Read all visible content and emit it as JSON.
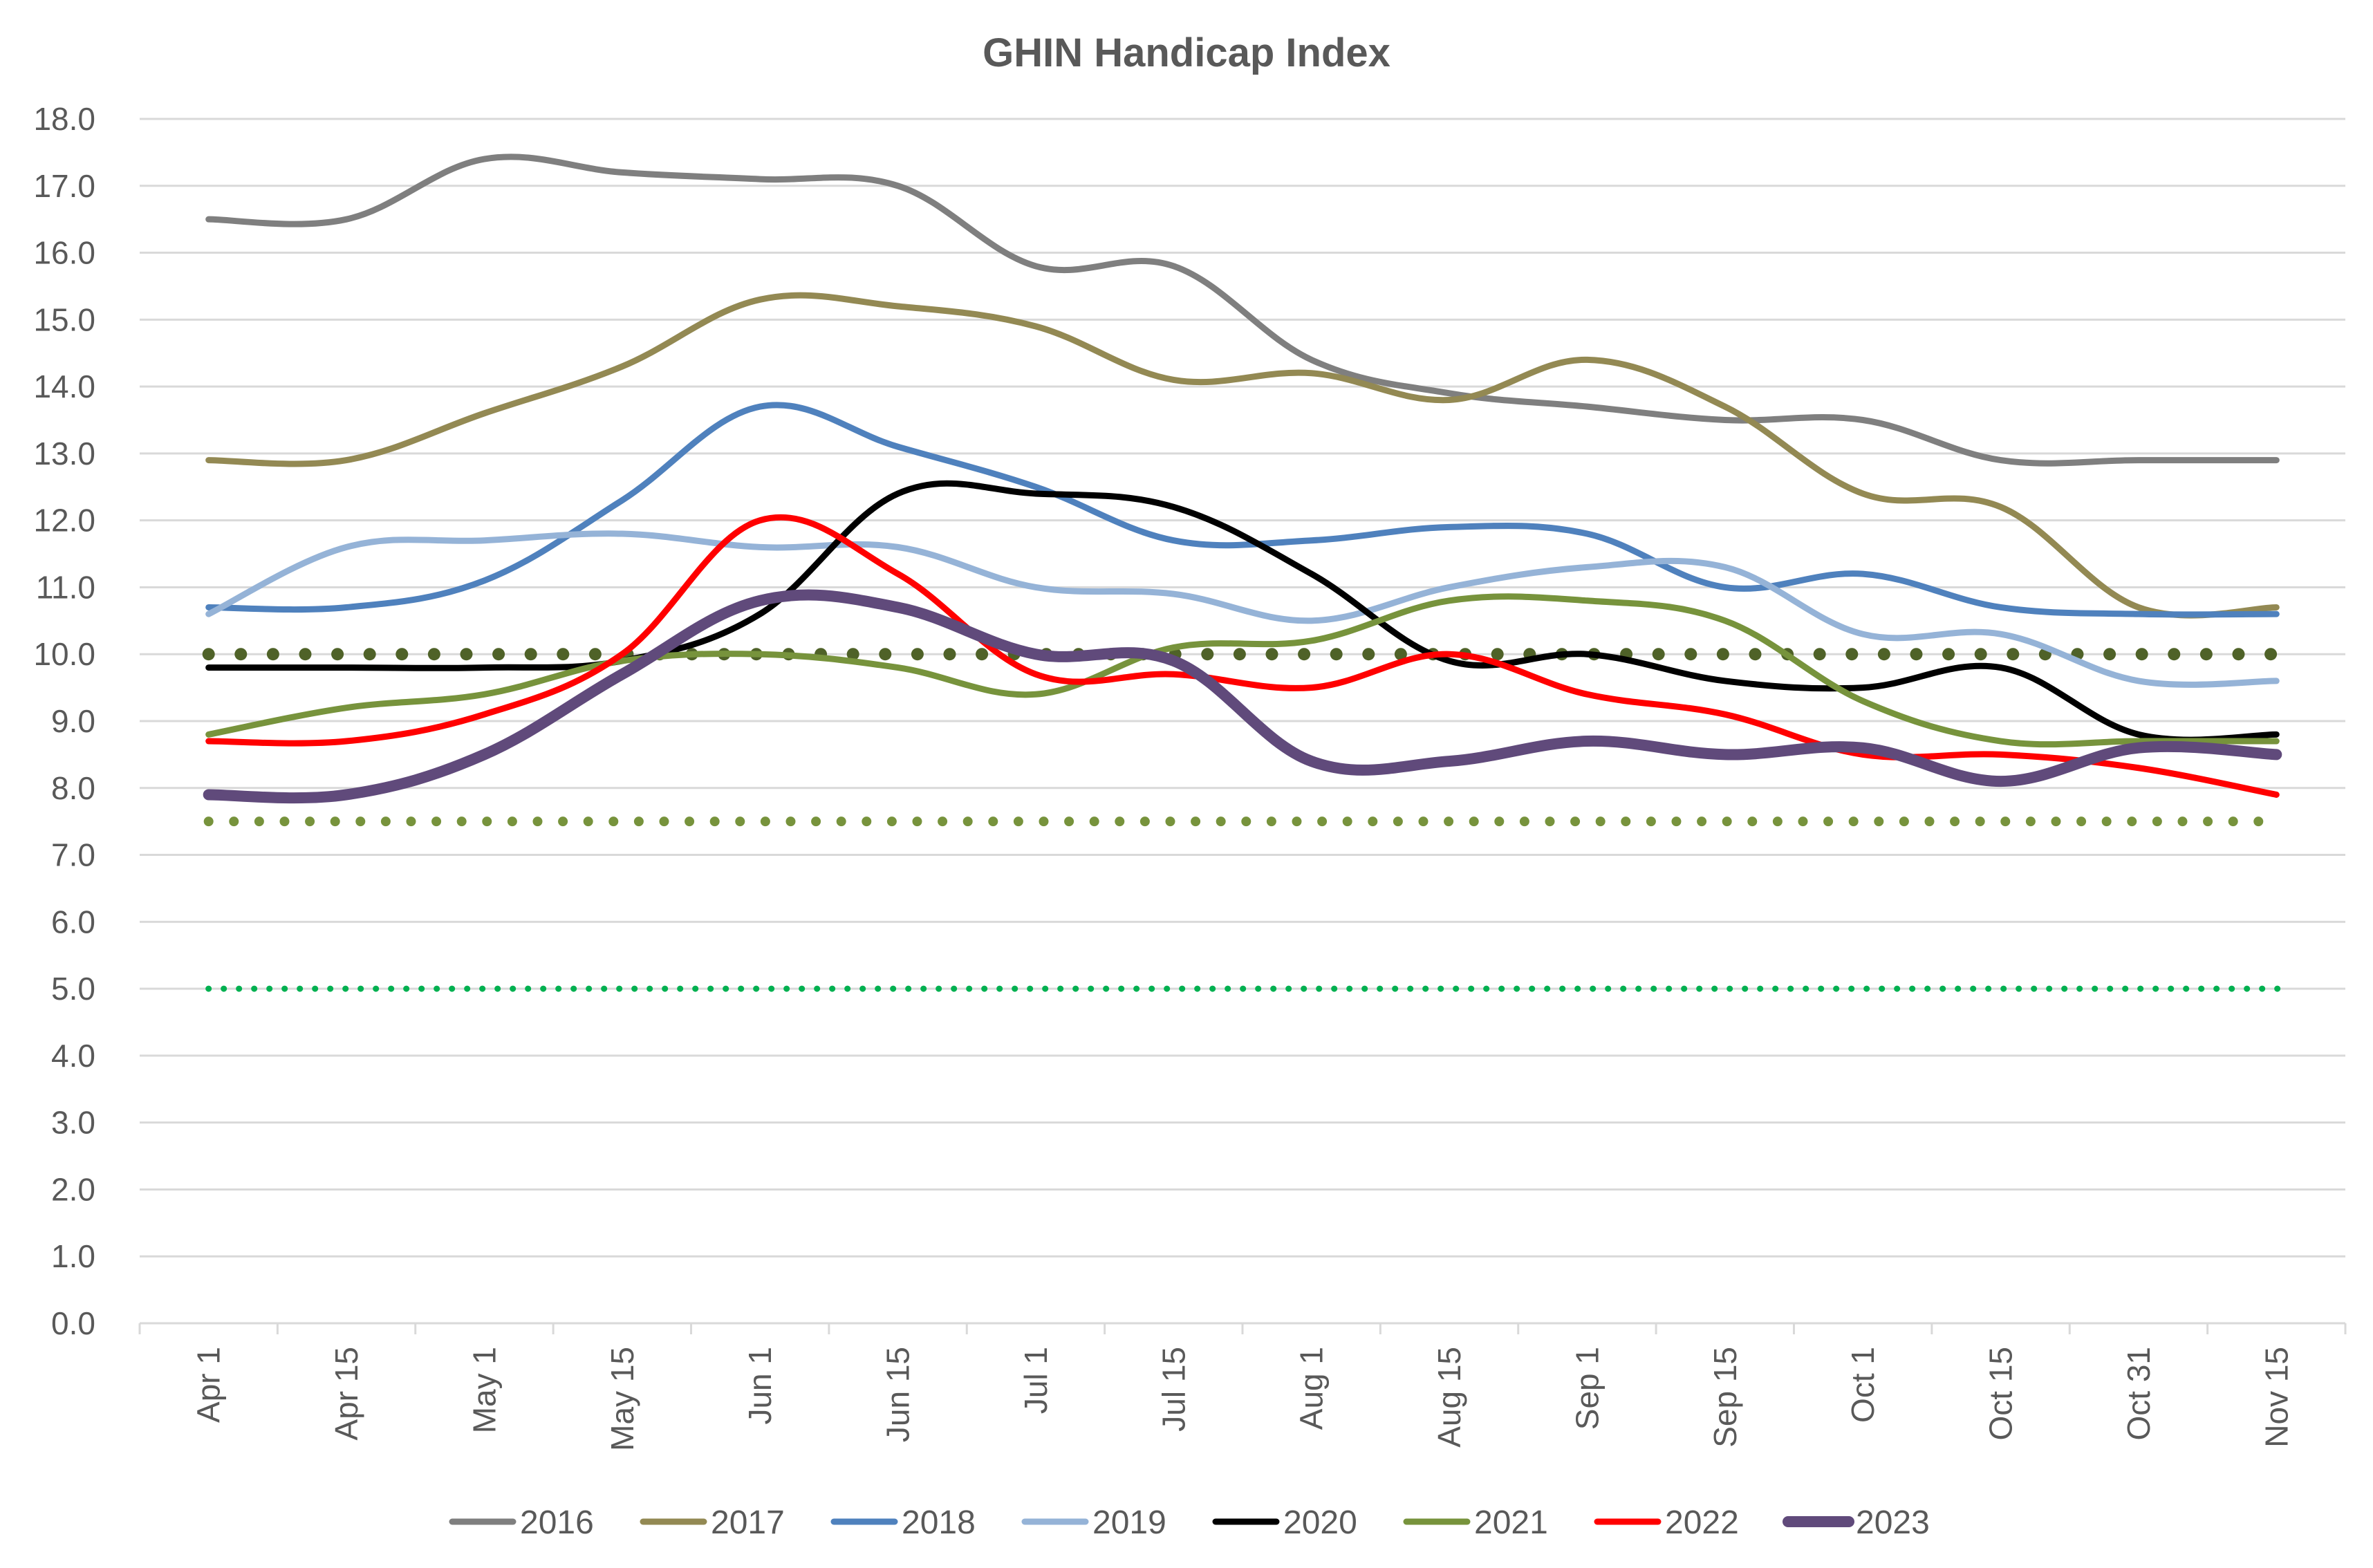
{
  "chart_data": {
    "type": "line",
    "title": "GHIN Handicap Index",
    "xlabel": "",
    "ylabel": "",
    "categories": [
      "Apr 1",
      "Apr 15",
      "May 1",
      "May 15",
      "Jun 1",
      "Jun 15",
      "Jul 1",
      "Jul 15",
      "Aug 1",
      "Aug 15",
      "Sep 1",
      "Sep 15",
      "Oct 1",
      "Oct 15",
      "Oct 31",
      "Nov 15"
    ],
    "ylim": [
      0,
      18
    ],
    "yticks": [
      "0.0",
      "1.0",
      "2.0",
      "3.0",
      "4.0",
      "5.0",
      "6.0",
      "7.0",
      "8.0",
      "9.0",
      "10.0",
      "11.0",
      "12.0",
      "13.0",
      "14.0",
      "15.0",
      "16.0",
      "17.0",
      "18.0"
    ],
    "grid": true,
    "legend_position": "bottom",
    "series": [
      {
        "name": "2016",
        "color": "#7f7f7f",
        "width": 9,
        "values": [
          16.5,
          16.5,
          17.4,
          17.2,
          17.1,
          17.0,
          15.8,
          15.8,
          14.4,
          13.9,
          13.7,
          13.5,
          13.5,
          12.9,
          12.9,
          12.9
        ]
      },
      {
        "name": "2017",
        "color": "#938953",
        "width": 9,
        "values": [
          12.9,
          12.9,
          13.6,
          14.3,
          15.3,
          15.2,
          14.9,
          14.1,
          14.2,
          13.8,
          14.4,
          13.7,
          12.4,
          12.2,
          10.7,
          10.7
        ]
      },
      {
        "name": "2018",
        "color": "#4f81bd",
        "width": 9,
        "values": [
          10.7,
          10.7,
          11.1,
          12.3,
          13.7,
          13.1,
          12.5,
          11.7,
          11.7,
          11.9,
          11.8,
          11.0,
          11.2,
          10.7,
          10.6,
          10.6
        ]
      },
      {
        "name": "2019",
        "color": "#95b3d7",
        "width": 9,
        "values": [
          10.6,
          11.6,
          11.7,
          11.8,
          11.6,
          11.6,
          11.0,
          10.9,
          10.5,
          11.0,
          11.3,
          11.3,
          10.3,
          10.3,
          9.6,
          9.6
        ]
      },
      {
        "name": "2020",
        "color": "#000000",
        "width": 9,
        "values": [
          9.8,
          9.8,
          9.8,
          9.9,
          10.6,
          12.4,
          12.4,
          12.2,
          11.2,
          9.9,
          10.0,
          9.6,
          9.5,
          9.8,
          8.8,
          8.8
        ]
      },
      {
        "name": "2021",
        "color": "#77933c",
        "width": 9,
        "values": [
          8.8,
          9.2,
          9.4,
          9.9,
          10.0,
          9.8,
          9.4,
          10.1,
          10.2,
          10.8,
          10.8,
          10.5,
          9.3,
          8.7,
          8.7,
          8.7
        ]
      },
      {
        "name": "2022",
        "color": "#ff0000",
        "width": 9,
        "values": [
          8.7,
          8.7,
          9.1,
          10.0,
          12.0,
          11.2,
          9.7,
          9.7,
          9.5,
          10.0,
          9.4,
          9.1,
          8.5,
          8.5,
          8.3,
          7.9
        ]
      },
      {
        "name": "2023",
        "color": "#604a7b",
        "width": 16,
        "values": [
          7.9,
          7.9,
          8.5,
          9.7,
          10.8,
          10.7,
          10.0,
          9.9,
          8.4,
          8.4,
          8.7,
          8.5,
          8.6,
          8.1,
          8.6,
          8.5
        ]
      }
    ],
    "reference_lines": [
      {
        "value": 10.0,
        "color": "#4f6228"
      },
      {
        "value": 7.5,
        "color": "#77933c"
      },
      {
        "value": 5.0,
        "color": "#00b050"
      }
    ]
  }
}
